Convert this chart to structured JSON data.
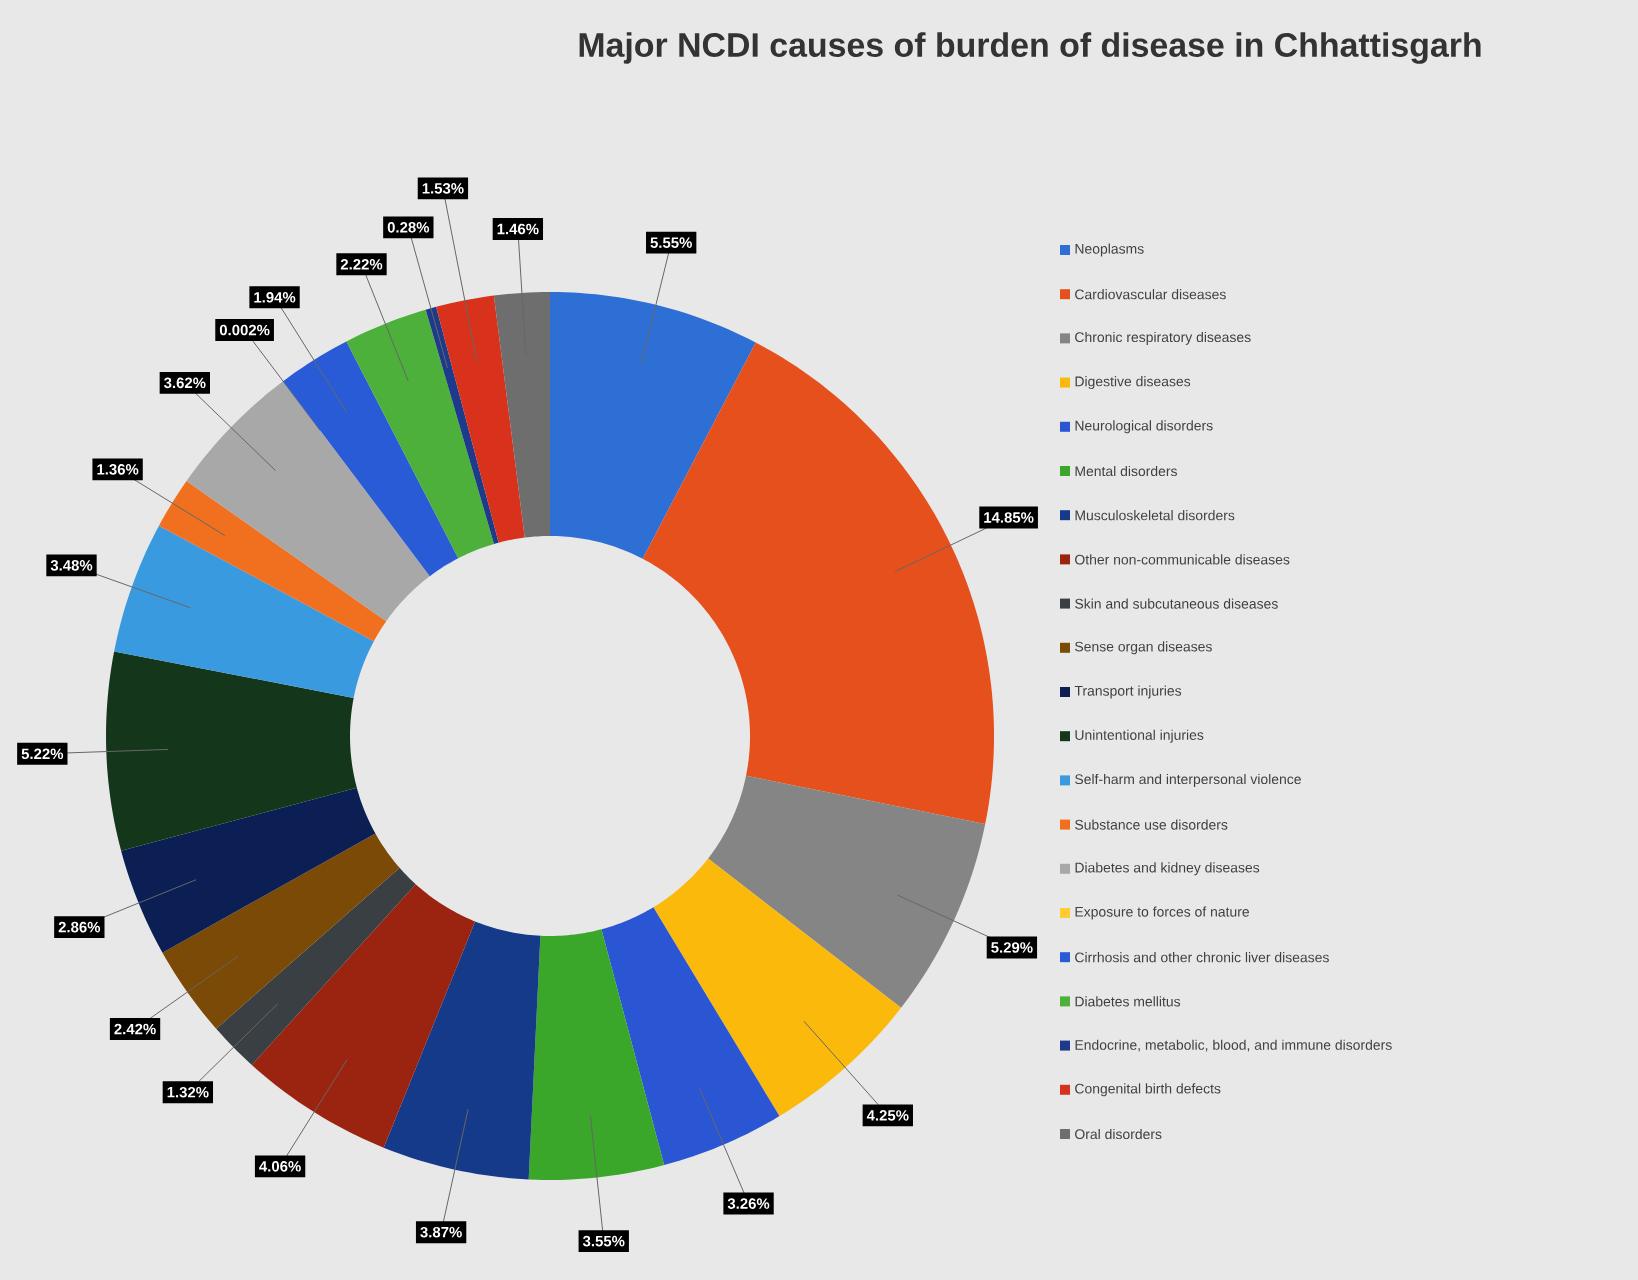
{
  "chart_data": {
    "type": "donut",
    "title": "Major NCDI causes of burden of disease in Chhattisgarh",
    "categories": [
      "Neoplasms",
      "Cardiovascular diseases",
      "Chronic respiratory diseases",
      "Digestive diseases",
      "Neurological disorders",
      "Mental disorders",
      "Musculoskeletal disorders",
      "Other non-communicable diseases",
      "Skin and subcutaneous diseases",
      "Sense organ diseases",
      "Transport injuries",
      "Unintentional injuries",
      "Self-harm and interpersonal violence",
      "Substance use disorders",
      "Diabetes and kidney diseases",
      "Exposure to forces of nature",
      "Cirrhosis and other chronic liver diseases",
      "Diabetes mellitus",
      "Endocrine, metabolic, blood, and immune disorders",
      "Congenital birth defects",
      "Oral disorders"
    ],
    "values": [
      5.55,
      14.85,
      5.29,
      4.25,
      3.26,
      3.55,
      3.87,
      4.06,
      1.32,
      2.42,
      2.86,
      5.22,
      3.48,
      1.36,
      3.62,
      0.002,
      1.94,
      2.22,
      0.28,
      1.53,
      1.46
    ],
    "value_labels": [
      "5.55%",
      "14.85%",
      "5.29%",
      "4.25%",
      "3.26%",
      "3.55%",
      "3.87%",
      "4.06%",
      "1.32%",
      "2.42%",
      "2.86%",
      "5.22%",
      "3.48%",
      "1.36%",
      "3.62%",
      "0.002%",
      "1.94%",
      "2.22%",
      "0.28%",
      "1.53%",
      "1.46%"
    ],
    "colors": [
      "#2e6fd6",
      "#e5501c",
      "#858585",
      "#fbb90c",
      "#2a56d4",
      "#3aa62a",
      "#163a8a",
      "#9a2410",
      "#3a3f44",
      "#7a4a06",
      "#0c1f55",
      "#14361a",
      "#3a9ae0",
      "#f07020",
      "#a8a8a8",
      "#ffcd33",
      "#2a5bd7",
      "#4cb03a",
      "#1e3a8a",
      "#d8321c",
      "#6e6e6e"
    ],
    "legend": "right"
  }
}
